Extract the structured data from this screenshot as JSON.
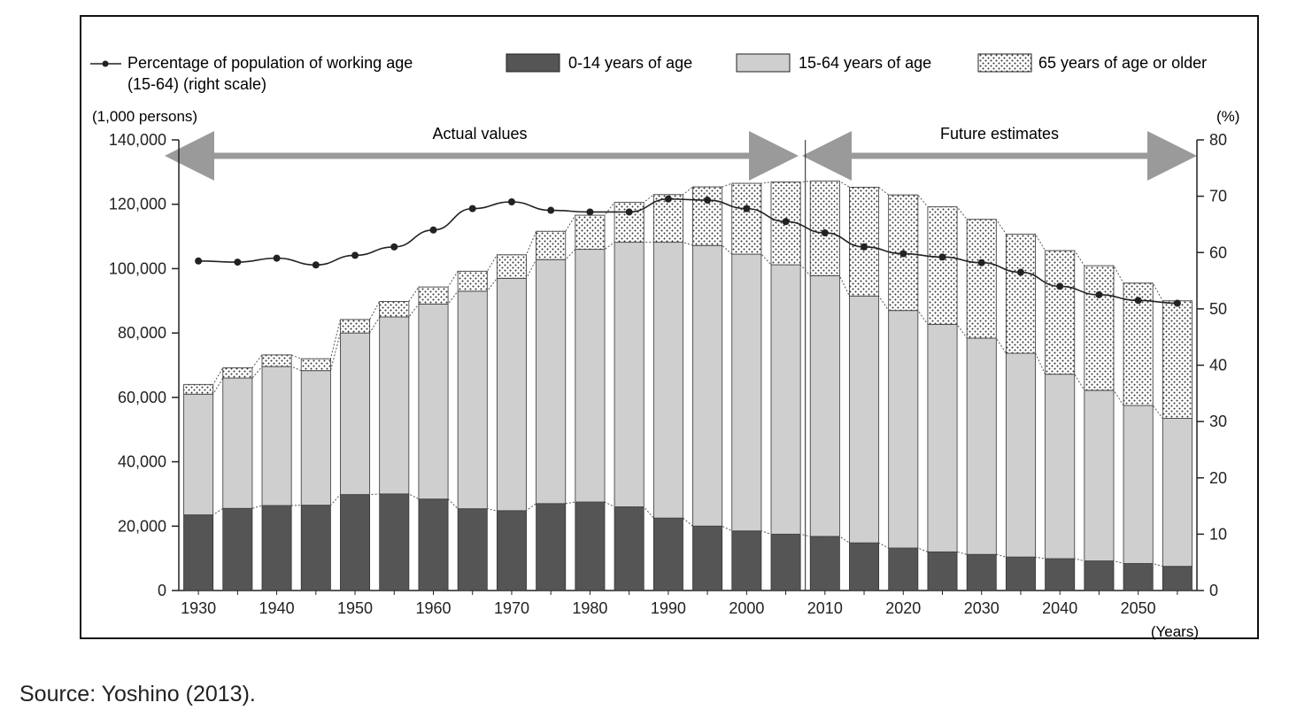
{
  "chart_data": {
    "type": "bar",
    "stacked": true,
    "left_unit_label": "(1,000 persons)",
    "right_unit_label": "(%)",
    "x_unit_label": "(Years)",
    "ylim": [
      0,
      140000
    ],
    "y2lim": [
      0,
      80
    ],
    "y_ticks": [
      "0",
      "20,000",
      "40,000",
      "60,000",
      "80,000",
      "100,000",
      "120,000",
      "140,000"
    ],
    "y2_ticks": [
      "0",
      "10",
      "20",
      "30",
      "40",
      "50",
      "60",
      "70",
      "80"
    ],
    "x_tick_labels": [
      "1930",
      "1940",
      "1950",
      "1960",
      "1970",
      "1980",
      "1990",
      "2000",
      "2010",
      "2020",
      "2030",
      "2040",
      "2050"
    ],
    "categories": [
      "1930",
      "1935",
      "1940",
      "1945",
      "1950",
      "1955",
      "1960",
      "1965",
      "1970",
      "1975",
      "1980",
      "1985",
      "1990",
      "1995",
      "2000",
      "2005",
      "2010",
      "2015",
      "2020",
      "2025",
      "2030",
      "2035",
      "2040",
      "2045",
      "2050",
      "2055"
    ],
    "series": [
      {
        "name": "0-14 years of age",
        "pattern": "solid-dark",
        "values": [
          23500,
          25500,
          26400,
          26500,
          29800,
          30000,
          28400,
          25400,
          24800,
          27000,
          27500,
          26000,
          22500,
          20000,
          18500,
          17500,
          16800,
          14800,
          13200,
          12000,
          11200,
          10400,
          9900,
          9200,
          8400,
          7500
        ]
      },
      {
        "name": "15-64 years of age",
        "pattern": "solid-light",
        "values": [
          37500,
          40500,
          43200,
          41800,
          50200,
          55000,
          60600,
          67600,
          72200,
          75800,
          78500,
          82200,
          85700,
          87200,
          86000,
          83700,
          81000,
          76700,
          73800,
          70700,
          67200,
          63300,
          57300,
          53000,
          49100,
          46000
        ]
      },
      {
        "name": "65 years of age or older",
        "pattern": "dotted",
        "values": [
          3000,
          3200,
          3600,
          3700,
          4200,
          4800,
          5300,
          6200,
          7300,
          8800,
          10600,
          12400,
          14800,
          18200,
          22000,
          25700,
          29400,
          33800,
          35900,
          36500,
          36900,
          37000,
          38400,
          38700,
          38000,
          36500
        ]
      }
    ],
    "line_series": {
      "name": "Percentage of population of working age (15-64) (right scale)",
      "axis": "right",
      "values": [
        58.5,
        58.3,
        59,
        57.8,
        59.5,
        61,
        64,
        67.8,
        69,
        67.5,
        67.2,
        67.2,
        69.5,
        69.3,
        67.8,
        65.5,
        63.5,
        61,
        59.8,
        59.2,
        58.2,
        56.5,
        54,
        52.5,
        51.5,
        51
      ]
    },
    "legend": {
      "line_label_line1": "Percentage of population of working age",
      "line_label_line2": "(15-64) (right scale)",
      "youth": "0-14 years of age",
      "working": "15-64 years of age",
      "elderly": "65 years of age or older"
    },
    "annotations": {
      "actual": "Actual values",
      "future": "Future estimates"
    }
  },
  "source": "Source: Yoshino (2013)."
}
